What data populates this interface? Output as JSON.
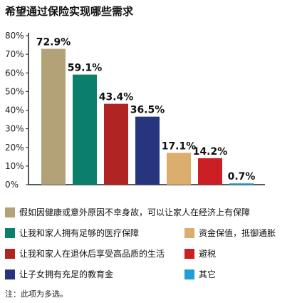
{
  "title": "希望通过保险实现哪些需求",
  "note": "注：此项为多选。",
  "chart_data": {
    "type": "bar",
    "ylim": [
      0,
      80
    ],
    "yticks": [
      "0%",
      "10%",
      "20%",
      "30%",
      "40%",
      "50%",
      "60%",
      "70%",
      "80%"
    ],
    "grid": false,
    "legend_placement": "bottom",
    "categories": [
      "假如因健康或意外原因不幸身故，可以让家人在经济上有保障",
      "让我和家人拥有足够的医疗保障",
      "让我和家人在退休后享受高品质的生活",
      "让子女拥有充足的教育金",
      "资金保值，抵御通胀",
      "避税",
      "其它"
    ],
    "values": [
      72.9,
      59.1,
      43.4,
      36.5,
      17.1,
      14.2,
      0.7
    ],
    "value_labels": [
      "72.9%",
      "59.1%",
      "43.4%",
      "36.5%",
      "17.1%",
      "14.2%",
      "0.7%"
    ],
    "colors": [
      "#b3a277",
      "#0b7f6c",
      "#b02424",
      "#27357f",
      "#dcae6e",
      "#cc1f23",
      "#1f9fd6"
    ]
  }
}
